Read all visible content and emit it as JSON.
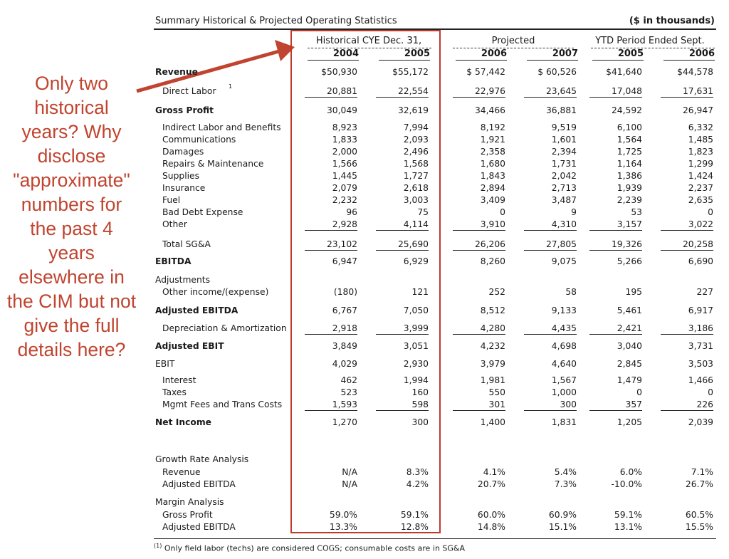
{
  "title": "Summary Historical & Projected Operating Statistics",
  "units": "($ in thousands)",
  "groups": {
    "historical": "Historical CYE Dec. 31,",
    "projected": "Projected",
    "ytd": "YTD Period Ended Sept."
  },
  "years": [
    "2004",
    "2005",
    "2006",
    "2007",
    "2005",
    "2006"
  ],
  "annotation": "Only two historical years? Why disclose \"approximate\" numbers for the past 4 years elsewhere in the CIM but not give the full details here?",
  "colors": {
    "annotation": "#c0442f",
    "highlight_box": "#c0392b"
  },
  "rows": {
    "revenue": {
      "label": "Revenue",
      "values": [
        "$50,930",
        "$55,172",
        "$ 57,442",
        "$ 60,526",
        "$41,640",
        "$44,578"
      ]
    },
    "direct_labor": {
      "label": "Direct Labor",
      "footnote": "1",
      "values": [
        "20,881",
        "22,554",
        "22,976",
        "23,645",
        "17,048",
        "17,631"
      ]
    },
    "gross_profit": {
      "label": "Gross Profit",
      "values": [
        "30,049",
        "32,619",
        "34,466",
        "36,881",
        "24,592",
        "26,947"
      ]
    },
    "indirect_labor": {
      "label": "Indirect Labor and Benefits",
      "values": [
        "8,923",
        "7,994",
        "8,192",
        "9,519",
        "6,100",
        "6,332"
      ]
    },
    "communications": {
      "label": "Communications",
      "values": [
        "1,833",
        "2,093",
        "1,921",
        "1,601",
        "1,564",
        "1,485"
      ]
    },
    "damages": {
      "label": "Damages",
      "values": [
        "2,000",
        "2,496",
        "2,358",
        "2,394",
        "1,725",
        "1,823"
      ]
    },
    "repairs": {
      "label": "Repairs & Maintenance",
      "values": [
        "1,566",
        "1,568",
        "1,680",
        "1,731",
        "1,164",
        "1,299"
      ]
    },
    "supplies": {
      "label": "Supplies",
      "values": [
        "1,445",
        "1,727",
        "1,843",
        "2,042",
        "1,386",
        "1,424"
      ]
    },
    "insurance": {
      "label": "Insurance",
      "values": [
        "2,079",
        "2,618",
        "2,894",
        "2,713",
        "1,939",
        "2,237"
      ]
    },
    "fuel": {
      "label": "Fuel",
      "values": [
        "2,232",
        "3,003",
        "3,409",
        "3,487",
        "2,239",
        "2,635"
      ]
    },
    "bad_debt": {
      "label": "Bad Debt Expense",
      "values": [
        "96",
        "75",
        "0",
        "9",
        "53",
        "0"
      ]
    },
    "other": {
      "label": "Other",
      "values": [
        "2,928",
        "4,114",
        "3,910",
        "4,310",
        "3,157",
        "3,022"
      ]
    },
    "total_sga": {
      "label": "Total SG&A",
      "values": [
        "23,102",
        "25,690",
        "26,206",
        "27,805",
        "19,326",
        "20,258"
      ]
    },
    "ebitda": {
      "label": "EBITDA",
      "values": [
        "6,947",
        "6,929",
        "8,260",
        "9,075",
        "5,266",
        "6,690"
      ]
    },
    "adjustments": {
      "label": "Adjustments"
    },
    "other_income": {
      "label": "Other income/(expense)",
      "values": [
        "(180)",
        "121",
        "252",
        "58",
        "195",
        "227"
      ]
    },
    "adj_ebitda": {
      "label": "Adjusted EBITDA",
      "values": [
        "6,767",
        "7,050",
        "8,512",
        "9,133",
        "5,461",
        "6,917"
      ]
    },
    "da": {
      "label": "Depreciation & Amortization",
      "values": [
        "2,918",
        "3,999",
        "4,280",
        "4,435",
        "2,421",
        "3,186"
      ]
    },
    "adj_ebit": {
      "label": "Adjusted EBIT",
      "values": [
        "3,849",
        "3,051",
        "4,232",
        "4,698",
        "3,040",
        "3,731"
      ]
    },
    "ebit": {
      "label": "EBIT",
      "values": [
        "4,029",
        "2,930",
        "3,979",
        "4,640",
        "2,845",
        "3,503"
      ]
    },
    "interest": {
      "label": "Interest",
      "values": [
        "462",
        "1,994",
        "1,981",
        "1,567",
        "1,479",
        "1,466"
      ]
    },
    "taxes": {
      "label": "Taxes",
      "values": [
        "523",
        "160",
        "550",
        "1,000",
        "0",
        "0"
      ]
    },
    "mgmt_fees": {
      "label": "Mgmt Fees and Trans Costs",
      "values": [
        "1,593",
        "598",
        "301",
        "300",
        "357",
        "226"
      ]
    },
    "net_income": {
      "label": "Net Income",
      "values": [
        "1,270",
        "300",
        "1,400",
        "1,831",
        "1,205",
        "2,039"
      ]
    },
    "growth_header": {
      "label": "Growth Rate Analysis"
    },
    "growth_revenue": {
      "label": "Revenue",
      "values": [
        "N/A",
        "8.3%",
        "4.1%",
        "5.4%",
        "6.0%",
        "7.1%"
      ]
    },
    "growth_adj_ebitda": {
      "label": "Adjusted EBITDA",
      "values": [
        "N/A",
        "4.2%",
        "20.7%",
        "7.3%",
        "-10.0%",
        "26.7%"
      ]
    },
    "margin_header": {
      "label": "Margin Analysis"
    },
    "margin_gross_profit": {
      "label": "Gross Profit",
      "values": [
        "59.0%",
        "59.1%",
        "60.0%",
        "60.9%",
        "59.1%",
        "60.5%"
      ]
    },
    "margin_adj_ebitda": {
      "label": "Adjusted EBITDA",
      "values": [
        "13.3%",
        "12.8%",
        "14.8%",
        "15.1%",
        "13.1%",
        "15.5%"
      ]
    }
  },
  "footnote": {
    "marker": "(1)",
    "text": "Only field labor (techs) are considered COGS; consumable costs are in SG&A"
  }
}
